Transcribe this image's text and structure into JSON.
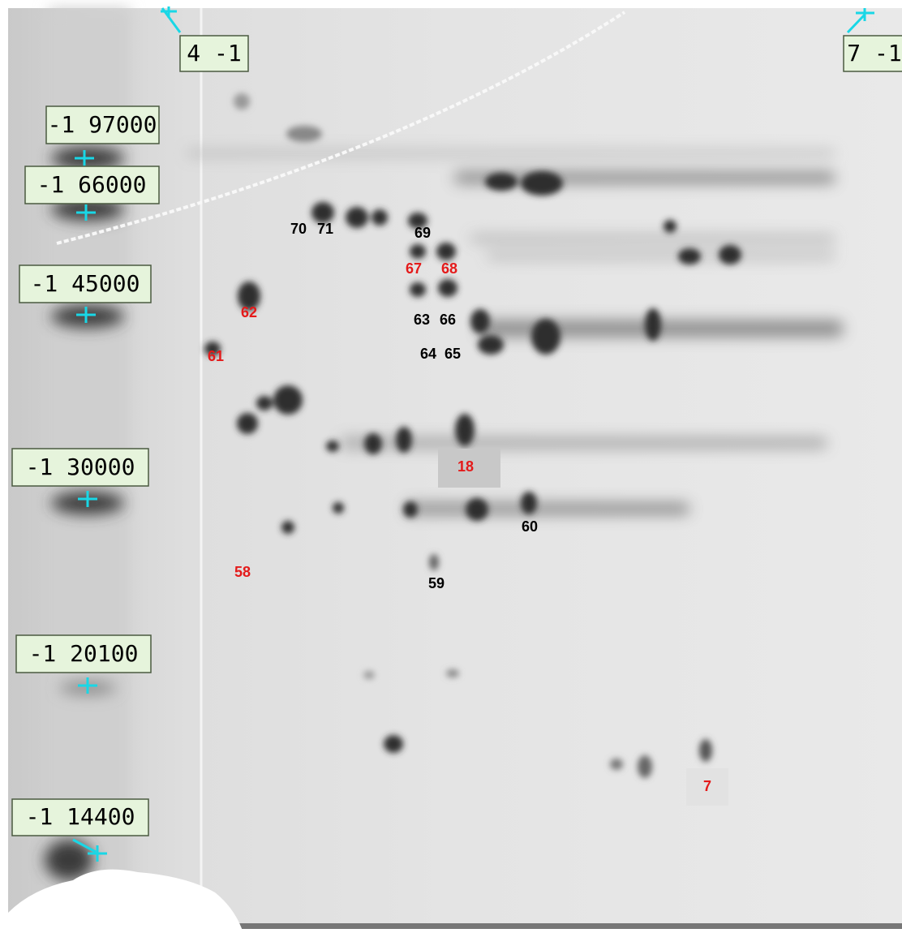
{
  "markers": [
    "4 -1",
    "7 -1",
    "-1 97000",
    "-1 66000",
    "-1 45000",
    "-1 30000",
    "-1 20100",
    "-1 14400"
  ],
  "spots": [
    {
      "label": "70",
      "color": "#000000"
    },
    {
      "label": "71",
      "color": "#000000"
    },
    {
      "label": "69",
      "color": "#000000"
    },
    {
      "label": "67",
      "color": "#e41a1a"
    },
    {
      "label": "68",
      "color": "#e41a1a"
    },
    {
      "label": "62",
      "color": "#e41a1a"
    },
    {
      "label": "63",
      "color": "#000000"
    },
    {
      "label": "66",
      "color": "#000000"
    },
    {
      "label": "61",
      "color": "#e41a1a"
    },
    {
      "label": "64",
      "color": "#000000"
    },
    {
      "label": "65",
      "color": "#000000"
    },
    {
      "label": "18",
      "color": "#e41a1a"
    },
    {
      "label": "60",
      "color": "#000000"
    },
    {
      "label": "58",
      "color": "#e41a1a"
    },
    {
      "label": "59",
      "color": "#000000"
    },
    {
      "label": "7",
      "color": "#e41a1a"
    }
  ]
}
